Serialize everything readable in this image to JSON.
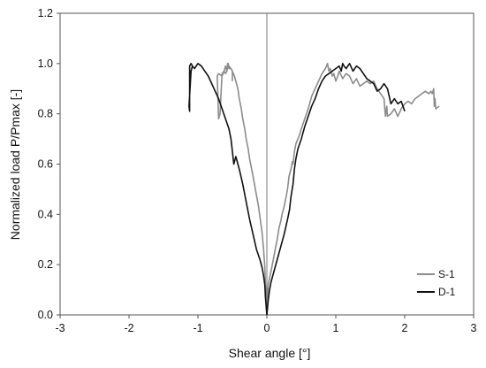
{
  "chart_data": {
    "type": "line",
    "xlabel": "Shear angle [°]",
    "ylabel": "Normalized load P/Pmax [-]",
    "xlim": [
      -3,
      3
    ],
    "ylim": [
      0,
      1.2
    ],
    "x_ticks": [
      "-3",
      "-2",
      "-1",
      "0",
      "1",
      "2",
      "3"
    ],
    "y_ticks": [
      "0.0",
      "0.2",
      "0.4",
      "0.6",
      "0.8",
      "1.0",
      "1.2"
    ],
    "grid": false,
    "legend_position": "bottom-right",
    "reference_line_x": 0,
    "series": [
      {
        "name": "S-1",
        "color": "#8c8c8c",
        "x": [
          0.0,
          -0.01,
          -0.02,
          -0.03,
          -0.05,
          -0.07,
          -0.1,
          -0.12,
          -0.14,
          -0.16,
          -0.18,
          -0.2,
          -0.22,
          -0.25,
          -0.27,
          -0.3,
          -0.32,
          -0.35,
          -0.37,
          -0.4,
          -0.42,
          -0.45,
          -0.47,
          -0.5,
          -0.52,
          -0.55,
          -0.57,
          -0.58,
          -0.6,
          -0.62,
          -0.65,
          -0.7,
          -0.72,
          -0.7,
          -0.68,
          -0.65,
          -0.62,
          -0.6,
          -0.58,
          -0.56,
          -0.55,
          -0.52,
          -0.5,
          -0.5,
          null,
          0.0,
          0.02,
          0.05,
          0.08,
          0.1,
          0.12,
          0.15,
          0.18,
          0.2,
          0.22,
          0.25,
          0.28,
          0.3,
          0.32,
          0.35,
          0.37,
          0.38,
          0.4,
          0.42,
          0.45,
          0.48,
          0.5,
          0.55,
          0.6,
          0.65,
          0.7,
          0.75,
          0.8,
          0.85,
          0.88,
          0.9,
          0.92,
          0.95,
          0.97,
          1.0,
          1.03,
          1.05,
          1.1,
          1.15,
          1.2,
          1.25,
          1.3,
          1.35,
          1.4,
          1.45,
          1.5,
          1.55,
          1.6,
          1.65,
          1.7,
          1.72,
          1.74,
          1.75,
          1.8,
          1.85,
          1.9,
          1.95,
          2.0,
          2.05,
          2.1,
          2.15,
          2.2,
          2.25,
          2.3,
          2.35,
          2.38,
          2.4,
          2.42,
          2.43,
          2.44,
          2.45,
          2.5
        ],
        "y": [
          0.0,
          0.06,
          0.12,
          0.19,
          0.27,
          0.33,
          0.39,
          0.43,
          0.46,
          0.49,
          0.52,
          0.55,
          0.58,
          0.62,
          0.66,
          0.7,
          0.74,
          0.78,
          0.82,
          0.86,
          0.9,
          0.93,
          0.95,
          0.97,
          0.98,
          0.99,
          1.0,
          0.97,
          0.96,
          0.97,
          0.95,
          0.96,
          0.95,
          0.78,
          0.8,
          0.96,
          0.97,
          0.99,
          0.97,
          1.0,
          0.98,
          0.98,
          0.97,
          0.93,
          null,
          0.0,
          0.12,
          0.16,
          0.2,
          0.23,
          0.26,
          0.3,
          0.35,
          0.37,
          0.4,
          0.43,
          0.47,
          0.5,
          0.55,
          0.58,
          0.61,
          0.6,
          0.65,
          0.68,
          0.7,
          0.72,
          0.74,
          0.78,
          0.82,
          0.87,
          0.9,
          0.93,
          0.96,
          0.98,
          1.0,
          0.97,
          0.98,
          0.95,
          0.96,
          0.93,
          0.95,
          0.97,
          0.94,
          0.96,
          0.95,
          0.92,
          0.94,
          0.91,
          0.92,
          0.93,
          0.92,
          0.93,
          0.9,
          0.88,
          0.86,
          0.79,
          0.83,
          0.79,
          0.8,
          0.82,
          0.79,
          0.82,
          0.84,
          0.85,
          0.84,
          0.86,
          0.87,
          0.88,
          0.89,
          0.88,
          0.89,
          0.88,
          0.9,
          0.83,
          0.86,
          0.82,
          0.83
        ]
      },
      {
        "name": "D-1",
        "color": "#111111",
        "x": [
          0.0,
          -0.02,
          -0.03,
          -0.05,
          -0.07,
          -0.1,
          -0.15,
          -0.2,
          -0.25,
          -0.3,
          -0.35,
          -0.4,
          -0.42,
          -0.45,
          -0.48,
          -0.5,
          -0.52,
          -0.55,
          -0.6,
          -0.65,
          -0.7,
          -0.75,
          -0.8,
          -0.85,
          -0.9,
          -0.95,
          -1.0,
          -1.05,
          -1.08,
          -1.1,
          -1.12,
          -1.12,
          -1.13,
          -1.1,
          -1.08,
          null,
          0.0,
          0.02,
          0.04,
          0.06,
          0.08,
          0.1,
          0.15,
          0.2,
          0.25,
          0.3,
          0.33,
          0.35,
          0.38,
          0.4,
          0.42,
          0.45,
          0.5,
          0.55,
          0.6,
          0.65,
          0.7,
          0.75,
          0.8,
          0.85,
          0.9,
          0.95,
          1.0,
          1.05,
          1.08,
          1.1,
          1.12,
          1.15,
          1.2,
          1.25,
          1.3,
          1.35,
          1.4,
          1.45,
          1.5,
          1.55,
          1.6,
          1.65,
          1.7,
          1.75,
          1.8,
          1.85,
          1.9,
          1.95,
          2.0
        ],
        "y": [
          0.0,
          0.07,
          0.12,
          0.16,
          0.19,
          0.22,
          0.26,
          0.32,
          0.38,
          0.45,
          0.52,
          0.58,
          0.6,
          0.63,
          0.6,
          0.65,
          0.7,
          0.74,
          0.78,
          0.82,
          0.86,
          0.89,
          0.92,
          0.95,
          0.97,
          0.99,
          1.0,
          0.98,
          0.99,
          1.0,
          0.99,
          0.81,
          0.83,
          0.97,
          0.99,
          null,
          0.0,
          0.06,
          0.1,
          0.13,
          0.15,
          0.17,
          0.22,
          0.27,
          0.32,
          0.38,
          0.42,
          0.47,
          0.52,
          0.58,
          0.62,
          0.66,
          0.7,
          0.75,
          0.79,
          0.83,
          0.86,
          0.9,
          0.93,
          0.95,
          0.96,
          0.97,
          0.98,
          0.99,
          0.97,
          1.0,
          0.99,
          0.98,
          1.0,
          0.97,
          0.99,
          0.98,
          0.96,
          0.94,
          0.93,
          0.92,
          0.89,
          0.9,
          0.92,
          0.9,
          0.84,
          0.86,
          0.84,
          0.85,
          0.81
        ]
      }
    ]
  }
}
